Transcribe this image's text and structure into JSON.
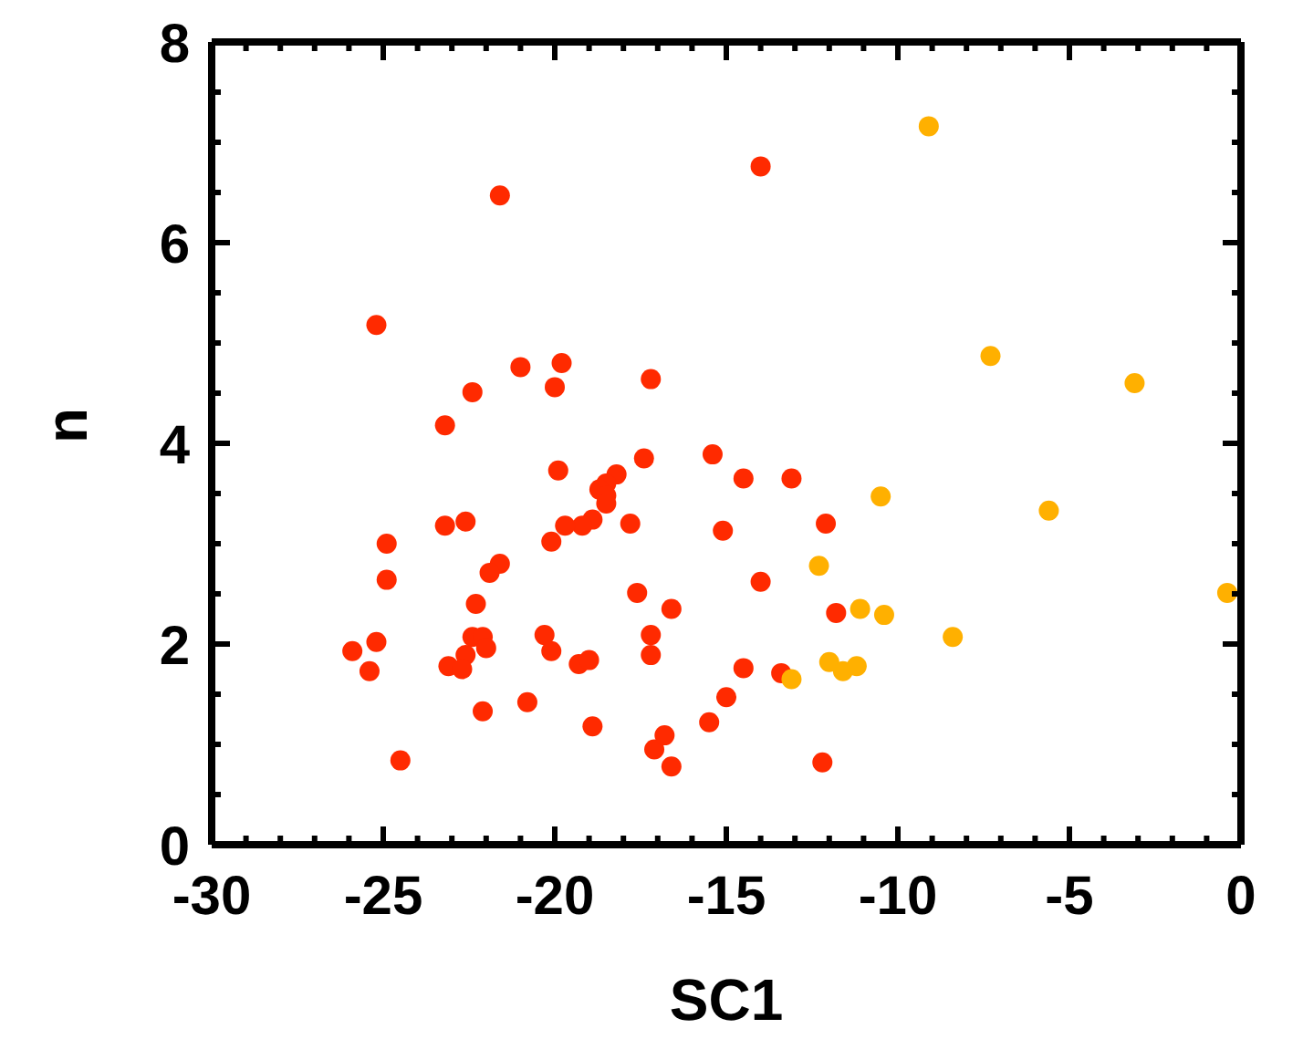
{
  "chart_data": {
    "type": "scatter",
    "xlabel": "SC1",
    "ylabel": "n",
    "marker": "circle",
    "xlim": [
      -30,
      0
    ],
    "ylim": [
      0,
      8
    ],
    "xticks": [
      -30,
      {
        "value": -29,
        "label": null
      },
      {
        "value": -28,
        "label": null
      },
      {
        "value": -27,
        "label": null
      },
      {
        "value": -26,
        "label": null
      },
      -25,
      {
        "value": -24,
        "label": null
      },
      {
        "value": -23,
        "label": null
      },
      {
        "value": -22,
        "label": null
      },
      {
        "value": -21,
        "label": null
      },
      -20,
      {
        "value": -19,
        "label": null
      },
      {
        "value": -18,
        "label": null
      },
      {
        "value": -17,
        "label": null
      },
      {
        "value": -16,
        "label": null
      },
      -15,
      {
        "value": -14,
        "label": null
      },
      {
        "value": -13,
        "label": null
      },
      {
        "value": -12,
        "label": null
      },
      {
        "value": -11,
        "label": null
      },
      -10,
      {
        "value": -9,
        "label": null
      },
      {
        "value": -8,
        "label": null
      },
      {
        "value": -7,
        "label": null
      },
      {
        "value": -6,
        "label": null
      },
      -5,
      {
        "value": -4,
        "label": null
      },
      {
        "value": -3,
        "label": null
      },
      {
        "value": -2,
        "label": null
      },
      {
        "value": -1,
        "label": null
      },
      0
    ],
    "yticks": [
      0,
      {
        "value": 0.5,
        "label": null
      },
      {
        "value": 1,
        "label": null
      },
      {
        "value": 1.5,
        "label": null
      },
      2,
      {
        "value": 2.5,
        "label": null
      },
      {
        "value": 3,
        "label": null
      },
      {
        "value": 3.5,
        "label": null
      },
      4,
      {
        "value": 4.5,
        "label": null
      },
      {
        "value": 5,
        "label": null
      },
      {
        "value": 5.5,
        "label": null
      },
      6,
      {
        "value": 6.5,
        "label": null
      },
      {
        "value": 7,
        "label": null
      },
      {
        "value": 7.5,
        "label": null
      },
      8
    ],
    "series": [
      {
        "color": "#ff2a00",
        "x": [
          -25.2,
          -21.6,
          -21.0,
          -19.8,
          -20.0,
          -22.4,
          -23.2,
          -17.2,
          -14.0,
          -19.9,
          -17.4,
          -15.4,
          -14.5,
          -14.0,
          -18.2,
          -18.5,
          -18.7,
          -18.5,
          -18.5,
          -17.8,
          -15.1,
          -18.9,
          -19.2,
          -19.7,
          -20.1,
          -23.2,
          -22.6,
          -24.9,
          -24.9,
          -21.6,
          -21.9,
          -22.3,
          -17.6,
          -16.6,
          -17.2,
          -17.2,
          -20.3,
          -20.1,
          -19.3,
          -19.0,
          -22.4,
          -22.1,
          -22.0,
          -22.6,
          -23.1,
          -22.7,
          -25.2,
          -25.9,
          -25.4,
          -22.1,
          -20.8,
          -24.5,
          -18.9,
          -17.1,
          -16.8,
          -16.6,
          -15.5,
          -15.0,
          -14.5,
          -13.1,
          -12.1,
          -11.8,
          -13.4,
          -12.2
        ],
        "values": [
          5.18,
          6.47,
          4.76,
          4.8,
          4.56,
          4.51,
          4.18,
          4.64,
          6.76,
          3.73,
          3.85,
          3.89,
          3.65,
          2.62,
          3.69,
          3.6,
          3.54,
          3.48,
          3.4,
          3.2,
          3.13,
          3.24,
          3.18,
          3.18,
          3.02,
          3.18,
          3.22,
          3.0,
          2.64,
          2.8,
          2.71,
          2.4,
          2.51,
          2.35,
          2.09,
          1.89,
          2.09,
          1.93,
          1.8,
          1.84,
          2.07,
          2.07,
          1.96,
          1.89,
          1.78,
          1.75,
          2.02,
          1.93,
          1.73,
          1.33,
          1.42,
          0.84,
          1.18,
          0.95,
          1.09,
          0.78,
          1.22,
          1.47,
          1.76,
          3.65,
          3.2,
          2.31,
          1.71,
          0.82
        ]
      },
      {
        "color": "#ffb000",
        "x": [
          -10.5,
          -5.6,
          -12.3,
          -11.1,
          -10.4,
          -8.4,
          -0.4,
          -12.0,
          -11.6,
          -11.2,
          -13.1,
          -9.1,
          -7.3,
          -3.1
        ],
        "values": [
          3.47,
          3.33,
          2.78,
          2.35,
          2.29,
          2.07,
          2.51,
          1.82,
          1.73,
          1.78,
          1.65,
          7.16,
          4.87,
          4.6
        ]
      }
    ]
  }
}
